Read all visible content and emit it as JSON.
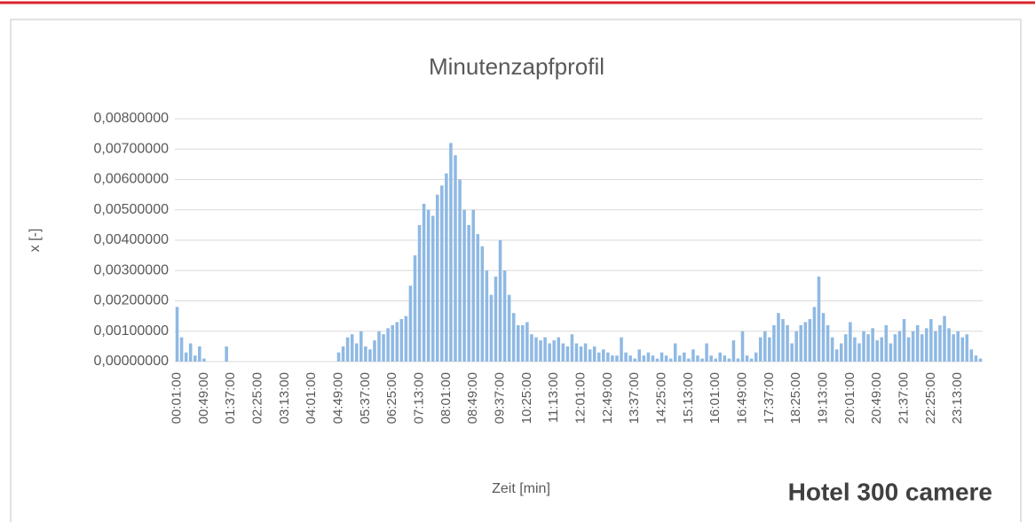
{
  "chart_data": {
    "type": "bar",
    "title": "Minutenzapfprofil",
    "subtitle": "Hotel 300 camere",
    "x_label": "Zeit [min]",
    "y_label": "x [-]",
    "color": "#8fb9e3",
    "grid": true,
    "ylim": [
      0,
      0.008
    ],
    "yticks": [
      {
        "value": 0,
        "label": "0,00000000"
      },
      {
        "value": 0.001,
        "label": "0,00100000"
      },
      {
        "value": 0.002,
        "label": "0,00200000"
      },
      {
        "value": 0.003,
        "label": "0,00300000"
      },
      {
        "value": 0.004,
        "label": "0,00400000"
      },
      {
        "value": 0.005,
        "label": "0,00500000"
      },
      {
        "value": 0.006,
        "label": "0,00600000"
      },
      {
        "value": 0.007,
        "label": "0,00700000"
      },
      {
        "value": 0.008,
        "label": "0,00800000"
      }
    ],
    "categories": [
      "00:01:00",
      null,
      null,
      null,
      null,
      null,
      "00:49:00",
      null,
      null,
      null,
      null,
      null,
      "01:37:00",
      null,
      null,
      null,
      null,
      null,
      "02:25:00",
      null,
      null,
      null,
      null,
      null,
      "03:13:00",
      null,
      null,
      null,
      null,
      null,
      "04:01:00",
      null,
      null,
      null,
      null,
      null,
      "04:49:00",
      null,
      null,
      null,
      null,
      null,
      "05:37:00",
      null,
      null,
      null,
      null,
      null,
      "06:25:00",
      null,
      null,
      null,
      null,
      null,
      "07:13:00",
      null,
      null,
      null,
      null,
      null,
      "08:01:00",
      null,
      null,
      null,
      null,
      null,
      "08:49:00",
      null,
      null,
      null,
      null,
      null,
      "09:37:00",
      null,
      null,
      null,
      null,
      null,
      "10:25:00",
      null,
      null,
      null,
      null,
      null,
      "11:13:00",
      null,
      null,
      null,
      null,
      null,
      "12:01:00",
      null,
      null,
      null,
      null,
      null,
      "12:49:00",
      null,
      null,
      null,
      null,
      null,
      "13:37:00",
      null,
      null,
      null,
      null,
      null,
      "14:25:00",
      null,
      null,
      null,
      null,
      null,
      "15:13:00",
      null,
      null,
      null,
      null,
      null,
      "16:01:00",
      null,
      null,
      null,
      null,
      null,
      "16:49:00",
      null,
      null,
      null,
      null,
      null,
      "17:37:00",
      null,
      null,
      null,
      null,
      null,
      "18:25:00",
      null,
      null,
      null,
      null,
      null,
      "19:13:00",
      null,
      null,
      null,
      null,
      null,
      "20:01:00",
      null,
      null,
      null,
      null,
      null,
      "20:49:00",
      null,
      null,
      null,
      null,
      null,
      "21:37:00",
      null,
      null,
      null,
      null,
      null,
      "22:25:00",
      null,
      null,
      null,
      null,
      null,
      "23:13:00",
      null,
      null,
      null,
      null,
      null
    ],
    "values": [
      0.0018,
      0.0008,
      0.0003,
      0.0006,
      0.0002,
      0.0005,
      0.0001,
      0,
      0,
      0,
      0,
      0.0005,
      0,
      0,
      0,
      0,
      0,
      0,
      0,
      0,
      0,
      0,
      0,
      0,
      0,
      0,
      0,
      0,
      0,
      0,
      0,
      0,
      0,
      0,
      0,
      0,
      0.0003,
      0.0005,
      0.0008,
      0.0009,
      0.0006,
      0.001,
      0.0005,
      0.0004,
      0.0007,
      0.001,
      0.0009,
      0.0011,
      0.0012,
      0.0013,
      0.0014,
      0.0015,
      0.0025,
      0.0035,
      0.0045,
      0.0052,
      0.005,
      0.0048,
      0.0055,
      0.0058,
      0.0062,
      0.0072,
      0.0068,
      0.006,
      0.005,
      0.0045,
      0.005,
      0.0042,
      0.0038,
      0.003,
      0.0022,
      0.0028,
      0.004,
      0.003,
      0.0022,
      0.0016,
      0.0012,
      0.0012,
      0.0013,
      0.0009,
      0.0008,
      0.0007,
      0.0008,
      0.0006,
      0.0007,
      0.0008,
      0.0006,
      0.0005,
      0.0009,
      0.0006,
      0.0005,
      0.0006,
      0.0004,
      0.0005,
      0.0003,
      0.0004,
      0.0003,
      0.0002,
      0.0002,
      0.0008,
      0.0003,
      0.0002,
      0.0001,
      0.0004,
      0.0002,
      0.0003,
      0.0002,
      0.0001,
      0.0003,
      0.0002,
      0.0001,
      0.0006,
      0.0002,
      0.0003,
      0.0001,
      0.0004,
      0.0002,
      0.0001,
      0.0006,
      0.0002,
      0.0001,
      0.0003,
      0.0002,
      0.0001,
      0.0007,
      0.0001,
      0.001,
      0.0002,
      0.0001,
      0.0003,
      0.0008,
      0.001,
      0.0008,
      0.0012,
      0.0016,
      0.0014,
      0.0012,
      0.0006,
      0.001,
      0.0012,
      0.0013,
      0.0014,
      0.0018,
      0.0028,
      0.0016,
      0.0012,
      0.0008,
      0.0004,
      0.0006,
      0.0009,
      0.0013,
      0.0008,
      0.0006,
      0.001,
      0.0009,
      0.0011,
      0.0007,
      0.0008,
      0.0012,
      0.0006,
      0.0009,
      0.001,
      0.0014,
      0.0008,
      0.001,
      0.0012,
      0.0009,
      0.0011,
      0.0014,
      0.001,
      0.0012,
      0.0015,
      0.0011,
      0.0009,
      0.001,
      0.0008,
      0.0009,
      0.0004,
      0.0002,
      0.0001
    ]
  }
}
